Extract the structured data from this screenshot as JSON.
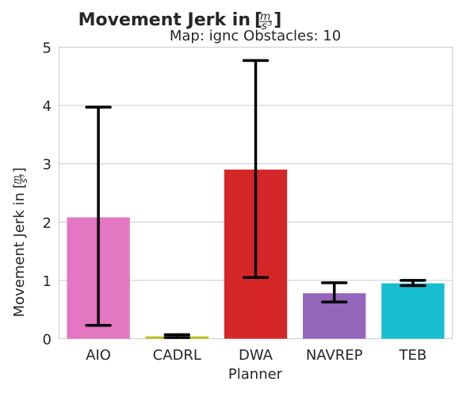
{
  "chart_data": {
    "type": "bar",
    "title": "Movement Jerk in",
    "title_unit": {
      "num": "m",
      "den": "s",
      "exp": "3"
    },
    "subtitle": "Map: ignc Obstacles: 10",
    "xlabel": "Planner",
    "ylabel": "Movement Jerk in",
    "ylabel_unit": {
      "num": "m",
      "den": "s",
      "exp": "3"
    },
    "categories": [
      "AIO",
      "CADRL",
      "DWA",
      "NAVREP",
      "TEB"
    ],
    "values": [
      2.08,
      0.04,
      2.9,
      0.78,
      0.95
    ],
    "error_low": [
      0.23,
      0.02,
      1.05,
      0.63,
      0.91
    ],
    "error_high": [
      3.97,
      0.07,
      4.77,
      0.96,
      1.0
    ],
    "colors": [
      "#e377c2",
      "#bcbd22",
      "#d62728",
      "#9467bd",
      "#17becf"
    ],
    "ylim": [
      0,
      5
    ],
    "yticks": [
      "0",
      "1",
      "2",
      "3",
      "4",
      "5"
    ],
    "grid": true
  }
}
